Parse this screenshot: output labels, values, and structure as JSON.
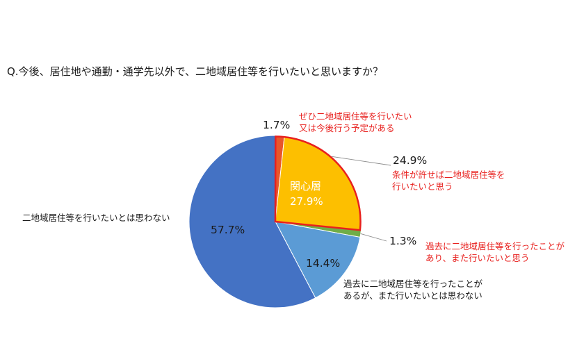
{
  "chart_data": {
    "type": "pie",
    "title": "Q.今後、居住地や通勤・通学先以外で、二地域居住等を行いたいと思いますか？",
    "slices": [
      {
        "label_lines": [
          "ぜひ二地域居住等を行いたい",
          "又は今後行う予定がある"
        ],
        "value": 1.7,
        "value_label": "1.7%",
        "color": "#e8562a"
      },
      {
        "label_lines": [
          "条件が許せば二地域居住等を",
          "行いたいと思う"
        ],
        "value": 24.9,
        "value_label": "24.9%",
        "color": "#fdbf00"
      },
      {
        "label_lines": [
          "過去に二地域居住等を行ったことが",
          "あり、また行いたいと思う"
        ],
        "value": 1.3,
        "value_label": "1.3%",
        "color": "#70ad47"
      },
      {
        "label_lines": [
          "過去に二地域居住等を行ったことが",
          "あるが、また行いたいとは思わない"
        ],
        "value": 14.4,
        "value_label": "14.4%",
        "color": "#5b9bd5"
      },
      {
        "label_lines": [
          "二地域居住等を行いたいとは思わない"
        ],
        "value": 57.7,
        "value_label": "57.7%",
        "color": "#4472c4"
      }
    ],
    "group_annotation": {
      "label": "関心層",
      "value_label": "27.9%",
      "outline_color": "#e8201e"
    },
    "legend": "none",
    "start_angle": "12 o'clock",
    "direction": "clockwise"
  }
}
